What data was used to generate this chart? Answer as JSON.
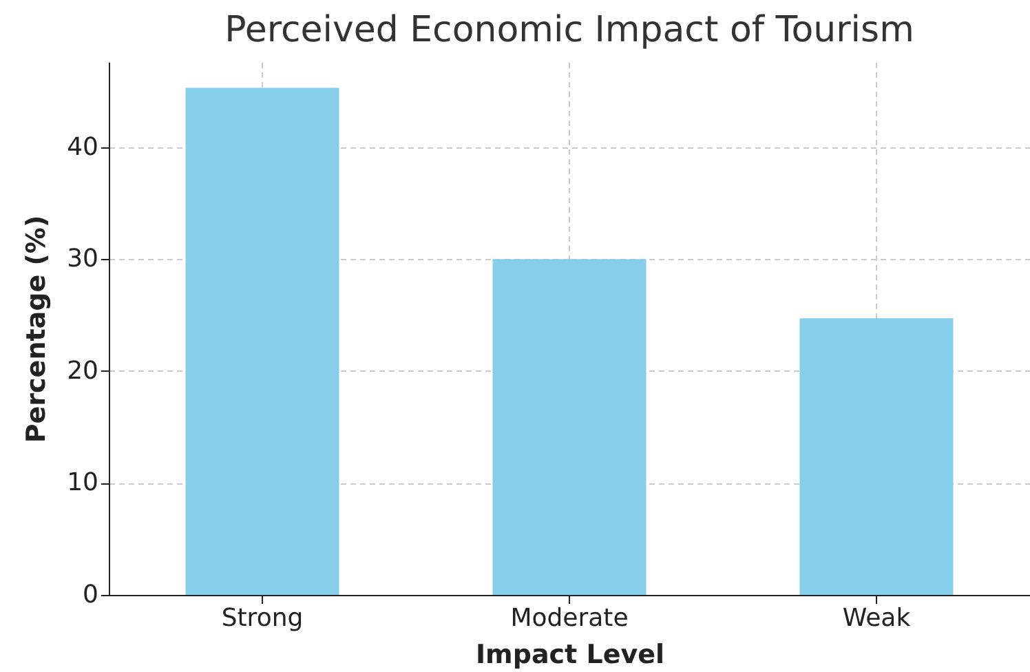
{
  "chart_data": {
    "type": "bar",
    "title": "Perceived Economic Impact of Tourism",
    "xlabel": "Impact Level",
    "ylabel": "Percentage (%)",
    "categories": [
      "Strong",
      "Moderate",
      "Weak"
    ],
    "values": [
      45.3,
      30.0,
      24.7
    ],
    "color": "#87ceeb",
    "ylim": [
      0,
      47.6
    ],
    "yticks": [
      0,
      10,
      20,
      30,
      40
    ],
    "grid": true
  }
}
